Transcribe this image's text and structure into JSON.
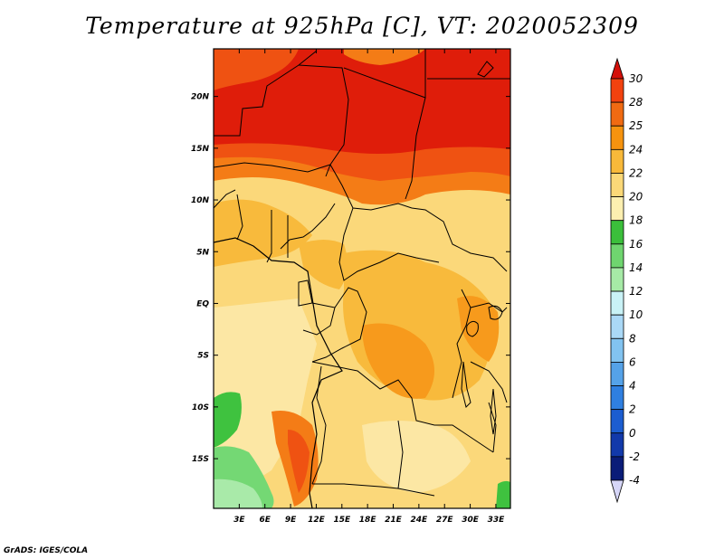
{
  "title": "Temperature at 925hPa [C], VT: 2020052309",
  "credit": "GrADS: IGES/COLA",
  "map": {
    "lon_range": [
      0,
      34.7
    ],
    "lat_range": [
      -19.8,
      24.6
    ],
    "lon_ticks": [
      "3E",
      "6E",
      "9E",
      "12E",
      "15E",
      "18E",
      "21E",
      "24E",
      "27E",
      "30E",
      "33E"
    ],
    "lon_tick_values": [
      3,
      6,
      9,
      12,
      15,
      18,
      21,
      24,
      27,
      30,
      33
    ],
    "lat_ticks": [
      "20N",
      "15N",
      "10N",
      "5N",
      "EQ",
      "5S",
      "10S",
      "15S"
    ],
    "lat_tick_values": [
      20,
      15,
      10,
      5,
      0,
      -5,
      -10,
      -15
    ]
  },
  "colorbar": {
    "labels": [
      "30",
      "28",
      "25",
      "24",
      "22",
      "20",
      "18",
      "16",
      "14",
      "12",
      "10",
      "8",
      "6",
      "4",
      "2",
      "0",
      "-2",
      "-4"
    ],
    "colors": [
      "#e8170f",
      "#f2420f",
      "#f06a12",
      "#f6930f",
      "#f8b93a",
      "#fbd878",
      "#fcefb0",
      "#3bbf3b",
      "#6fd56f",
      "#a6eaa6",
      "#c9f2f6",
      "#aad8f6",
      "#82c3f0",
      "#55a2e8",
      "#2f7fe0",
      "#1c5dd0",
      "#1239aa",
      "#0a1c78",
      "#12125a"
    ],
    "top_triangle_color": "#d4100a",
    "bottom_triangle_color": "#d6d6f8"
  },
  "palette": {
    "very_hot": "#df1d0a",
    "hot": "#ef5212",
    "warm": "#f47c16",
    "orange": "#f79a1c",
    "amber": "#f8ba3c",
    "light": "#fbd87a",
    "pale": "#fce7a4",
    "green_dark": "#3fc23f",
    "green": "#74d874",
    "green_light": "#a9eaa9"
  }
}
